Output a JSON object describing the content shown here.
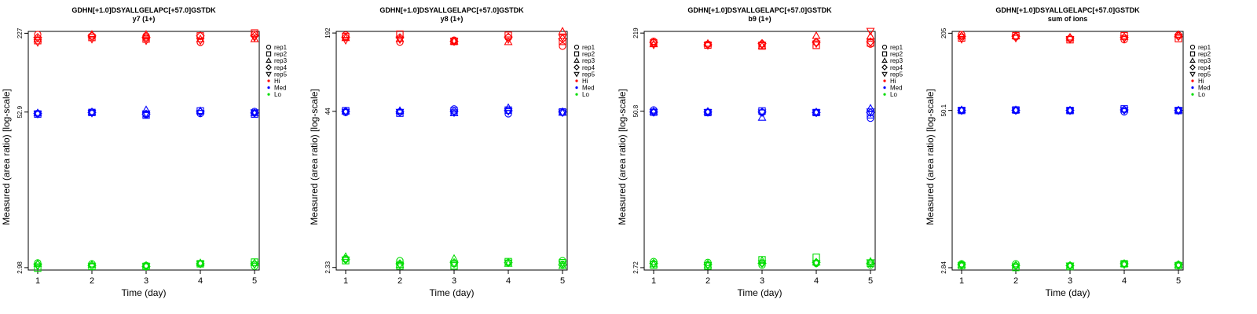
{
  "colors": {
    "Hi": "#ff0000",
    "Med": "#0000ff",
    "Lo": "#00dd00",
    "axis": "#000000"
  },
  "legend": {
    "reps": [
      {
        "label": "rep1",
        "shape": "circle"
      },
      {
        "label": "rep2",
        "shape": "square"
      },
      {
        "label": "rep3",
        "shape": "triangle-up"
      },
      {
        "label": "rep4",
        "shape": "diamond"
      },
      {
        "label": "rep5",
        "shape": "triangle-down"
      }
    ],
    "levels": [
      "Hi",
      "Med",
      "Lo"
    ]
  },
  "chart_data": [
    {
      "type": "scatter",
      "title": "GDHN[+1.0]DSYALLGELAPC[+57.0]GSTDK",
      "subtitle": "y7 (1+)",
      "xlabel": "Time (day)",
      "ylabel": "Measured (area ratio) [log-scale]",
      "yscale": "log",
      "yticks": [
        "227",
        "52.9",
        "2.98"
      ],
      "ylim": [
        2.85,
        235
      ],
      "x": [
        1,
        2,
        3,
        4,
        5
      ],
      "series": [
        {
          "level": "Hi",
          "rep": "rep1",
          "values": [
            222,
            216,
            216,
            192,
            222
          ]
        },
        {
          "level": "Hi",
          "rep": "rep2",
          "values": [
            198,
            210,
            204,
            216,
            228
          ]
        },
        {
          "level": "Hi",
          "rep": "rep3",
          "values": [
            204,
            222,
            222,
            204,
            204
          ]
        },
        {
          "level": "Hi",
          "rep": "rep4",
          "values": [
            210,
            216,
            210,
            216,
            216
          ]
        },
        {
          "level": "Hi",
          "rep": "rep5",
          "values": [
            192,
            204,
            198,
            198,
            210
          ]
        },
        {
          "level": "Med",
          "rep": "rep1",
          "values": [
            51.5,
            52.9,
            50.5,
            51.5,
            53.5
          ]
        },
        {
          "level": "Med",
          "rep": "rep2",
          "values": [
            51.0,
            52.5,
            50.0,
            54.0,
            51.0
          ]
        },
        {
          "level": "Med",
          "rep": "rep3",
          "values": [
            52.0,
            53.0,
            55.0,
            54.0,
            52.0
          ]
        },
        {
          "level": "Med",
          "rep": "rep4",
          "values": [
            51.5,
            52.5,
            51.0,
            53.0,
            52.0
          ]
        },
        {
          "level": "Med",
          "rep": "rep5",
          "values": [
            51.0,
            52.0,
            51.5,
            52.0,
            52.5
          ]
        },
        {
          "level": "Lo",
          "rep": "rep1",
          "values": [
            3.25,
            3.2,
            3.1,
            3.2,
            3.05
          ]
        },
        {
          "level": "Lo",
          "rep": "rep2",
          "values": [
            2.95,
            3.05,
            3.05,
            3.2,
            3.3
          ]
        },
        {
          "level": "Lo",
          "rep": "rep3",
          "values": [
            3.2,
            3.15,
            3.1,
            3.25,
            3.25
          ]
        },
        {
          "level": "Lo",
          "rep": "rep4",
          "values": [
            3.15,
            3.1,
            3.05,
            3.2,
            3.2
          ]
        },
        {
          "level": "Lo",
          "rep": "rep5",
          "values": [
            3.05,
            3.05,
            3.05,
            3.2,
            3.15
          ]
        }
      ]
    },
    {
      "type": "scatter",
      "title": "GDHN[+1.0]DSYALLGELAPC[+57.0]GSTDK",
      "subtitle": "y8 (1+)",
      "xlabel": "Time (day)",
      "ylabel": "Measured (area ratio) [log-scale]",
      "yscale": "log",
      "yticks": [
        "192",
        "44",
        "2.33"
      ],
      "ylim": [
        2.22,
        198
      ],
      "x": [
        1,
        2,
        3,
        4,
        5
      ],
      "series": [
        {
          "level": "Hi",
          "rep": "rep1",
          "values": [
            185,
            162,
            168,
            176,
            150
          ]
        },
        {
          "level": "Hi",
          "rep": "rep2",
          "values": [
            180,
            188,
            164,
            184,
            164
          ]
        },
        {
          "level": "Hi",
          "rep": "rep3",
          "values": [
            175,
            172,
            164,
            162,
            198
          ]
        },
        {
          "level": "Hi",
          "rep": "rep4",
          "values": [
            178,
            176,
            164,
            178,
            172
          ]
        },
        {
          "level": "Hi",
          "rep": "rep5",
          "values": [
            168,
            170,
            166,
            170,
            176
          ]
        },
        {
          "level": "Med",
          "rep": "rep1",
          "values": [
            43.0,
            43.5,
            46.0,
            42.0,
            43.0
          ]
        },
        {
          "level": "Med",
          "rep": "rep2",
          "values": [
            44.5,
            42.5,
            44.5,
            45.0,
            43.5
          ]
        },
        {
          "level": "Med",
          "rep": "rep3",
          "values": [
            44.0,
            44.5,
            42.5,
            47.0,
            43.0
          ]
        },
        {
          "level": "Med",
          "rep": "rep4",
          "values": [
            44.0,
            43.5,
            44.0,
            44.5,
            43.5
          ]
        },
        {
          "level": "Med",
          "rep": "rep5",
          "values": [
            43.5,
            43.5,
            43.0,
            44.0,
            43.0
          ]
        },
        {
          "level": "Lo",
          "rep": "rep1",
          "values": [
            2.75,
            2.65,
            2.5,
            2.55,
            2.65
          ]
        },
        {
          "level": "Lo",
          "rep": "rep2",
          "values": [
            2.65,
            2.4,
            2.4,
            2.6,
            2.55
          ]
        },
        {
          "level": "Lo",
          "rep": "rep3",
          "values": [
            2.85,
            2.45,
            2.75,
            2.5,
            2.4
          ]
        },
        {
          "level": "Lo",
          "rep": "rep4",
          "values": [
            2.7,
            2.5,
            2.55,
            2.55,
            2.45
          ]
        },
        {
          "level": "Lo",
          "rep": "rep5",
          "values": [
            2.7,
            2.45,
            2.5,
            2.55,
            2.5
          ]
        }
      ]
    },
    {
      "type": "scatter",
      "title": "GDHN[+1.0]DSYALLGELAPC[+57.0]GSTDK",
      "subtitle": "b9 (1+)",
      "xlabel": "Time (day)",
      "ylabel": "Measured (area ratio) [log-scale]",
      "yscale": "log",
      "yticks": [
        "219",
        "50.8",
        "2.72"
      ],
      "ylim": [
        2.6,
        226
      ],
      "x": [
        1,
        2,
        3,
        4,
        5
      ],
      "series": [
        {
          "level": "Hi",
          "rep": "rep1",
          "values": [
            188,
            178,
            178,
            184,
            178
          ]
        },
        {
          "level": "Hi",
          "rep": "rep2",
          "values": [
            182,
            175,
            172,
            174,
            182
          ]
        },
        {
          "level": "Hi",
          "rep": "rep3",
          "values": [
            178,
            180,
            172,
            208,
            206
          ]
        },
        {
          "level": "Hi",
          "rep": "rep4",
          "values": [
            184,
            176,
            180,
            184,
            186
          ]
        },
        {
          "level": "Hi",
          "rep": "rep5",
          "values": [
            176,
            174,
            176,
            180,
            228
          ]
        },
        {
          "level": "Med",
          "rep": "rep1",
          "values": [
            52.0,
            49.8,
            49.5,
            49.5,
            44.5
          ]
        },
        {
          "level": "Med",
          "rep": "rep2",
          "values": [
            49.8,
            49.5,
            51.0,
            49.5,
            47.5
          ]
        },
        {
          "level": "Med",
          "rep": "rep3",
          "values": [
            50.5,
            50.5,
            45.0,
            50.0,
            53.5
          ]
        },
        {
          "level": "Med",
          "rep": "rep4",
          "values": [
            50.0,
            50.0,
            50.0,
            49.5,
            49.5
          ]
        },
        {
          "level": "Med",
          "rep": "rep5",
          "values": [
            49.8,
            49.8,
            49.5,
            49.5,
            50.5
          ]
        },
        {
          "level": "Lo",
          "rep": "rep1",
          "values": [
            3.05,
            3.0,
            2.85,
            2.95,
            2.85
          ]
        },
        {
          "level": "Lo",
          "rep": "rep2",
          "values": [
            2.85,
            2.8,
            3.15,
            3.3,
            2.95
          ]
        },
        {
          "level": "Lo",
          "rep": "rep3",
          "values": [
            2.9,
            2.85,
            3.1,
            3.0,
            3.05
          ]
        },
        {
          "level": "Lo",
          "rep": "rep4",
          "values": [
            2.95,
            2.9,
            2.95,
            3.0,
            2.95
          ]
        },
        {
          "level": "Lo",
          "rep": "rep5",
          "values": [
            2.9,
            2.85,
            2.95,
            2.95,
            3.0
          ]
        }
      ]
    },
    {
      "type": "scatter",
      "title": "GDHN[+1.0]DSYALLGELAPC[+57.0]GSTDK",
      "subtitle": "sum of ions",
      "xlabel": "Time (day)",
      "ylabel": "Measured (area ratio) [log-scale]",
      "yscale": "log",
      "yticks": [
        "205",
        "50.1",
        "2.84"
      ],
      "ylim": [
        2.72,
        212
      ],
      "x": [
        1,
        2,
        3,
        4,
        5
      ],
      "series": [
        {
          "level": "Hi",
          "rep": "rep1",
          "values": [
            200,
            192,
            186,
            182,
            198
          ]
        },
        {
          "level": "Hi",
          "rep": "rep2",
          "values": [
            188,
            196,
            182,
            196,
            186
          ]
        },
        {
          "level": "Hi",
          "rep": "rep3",
          "values": [
            196,
            194,
            190,
            192,
            200
          ]
        },
        {
          "level": "Hi",
          "rep": "rep4",
          "values": [
            194,
            194,
            188,
            190,
            194
          ]
        },
        {
          "level": "Hi",
          "rep": "rep5",
          "values": [
            184,
            188,
            184,
            186,
            192
          ]
        },
        {
          "level": "Med",
          "rep": "rep1",
          "values": [
            50.1,
            50.1,
            50.1,
            48.8,
            50.1
          ]
        },
        {
          "level": "Med",
          "rep": "rep2",
          "values": [
            50.1,
            50.5,
            50.0,
            51.5,
            50.0
          ]
        },
        {
          "level": "Med",
          "rep": "rep3",
          "values": [
            50.5,
            50.5,
            50.2,
            51.0,
            50.3
          ]
        },
        {
          "level": "Med",
          "rep": "rep4",
          "values": [
            50.2,
            50.3,
            50.1,
            50.6,
            50.1
          ]
        },
        {
          "level": "Med",
          "rep": "rep5",
          "values": [
            50.0,
            50.1,
            50.0,
            50.3,
            50.0
          ]
        },
        {
          "level": "Lo",
          "rep": "rep1",
          "values": [
            3.05,
            3.05,
            2.95,
            3.05,
            3.0
          ]
        },
        {
          "level": "Lo",
          "rep": "rep2",
          "values": [
            2.95,
            2.85,
            2.9,
            3.05,
            2.95
          ]
        },
        {
          "level": "Lo",
          "rep": "rep3",
          "values": [
            3.0,
            2.95,
            2.95,
            3.05,
            3.0
          ]
        },
        {
          "level": "Lo",
          "rep": "rep4",
          "values": [
            3.0,
            2.95,
            2.95,
            3.05,
            3.0
          ]
        },
        {
          "level": "Lo",
          "rep": "rep5",
          "values": [
            2.95,
            2.9,
            2.95,
            3.0,
            2.95
          ]
        }
      ]
    }
  ]
}
